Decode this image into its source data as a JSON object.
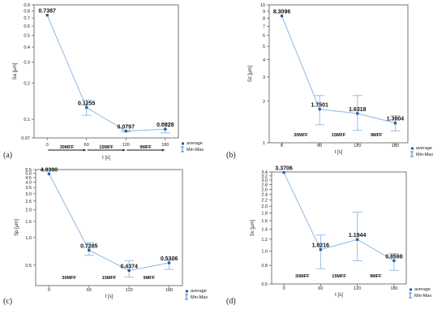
{
  "chart_data": [
    {
      "panel_label": "(a)",
      "type": "line",
      "ylabel": "Sa [µm]",
      "xlabel": "t [s]",
      "scale": "log",
      "ylim": [
        0.07,
        0.9
      ],
      "yticks": [
        "0.07",
        "0.1",
        "0.2",
        "0.3",
        "0.4",
        "0.5",
        "0.6",
        "0.7",
        "0.8",
        "0.9"
      ],
      "ytick_values": [
        0.07,
        0.1,
        0.2,
        0.3,
        0.4,
        0.5,
        0.6,
        0.7,
        0.8,
        0.9
      ],
      "x": [
        0,
        60,
        120,
        180
      ],
      "y": [
        0.7387,
        0.1255,
        0.0797,
        0.0828
      ],
      "labels": [
        "0.7387",
        "0.1255",
        "0.0797",
        "0.0828"
      ],
      "min": [
        0.7387,
        0.108,
        0.0785,
        0.077
      ],
      "max": [
        0.7387,
        0.145,
        0.081,
        0.092
      ],
      "stages": [
        "30MFF",
        "15MFF",
        "9MFF"
      ],
      "legend": [
        "average",
        "Min-Max"
      ],
      "color": "#1f5ea8",
      "line_color": "#8db8e3"
    },
    {
      "panel_label": "(b)",
      "type": "line",
      "ylabel": "Sz [µm]",
      "xlabel": "t [s]",
      "scale": "log",
      "ylim": [
        1,
        10
      ],
      "yticks": [
        "1",
        "2",
        "3",
        "4",
        "5",
        "6",
        "7",
        "8",
        "9",
        "10"
      ],
      "ytick_values": [
        1,
        2,
        3,
        4,
        5,
        6,
        7,
        8,
        9,
        10
      ],
      "x": [
        0,
        60,
        120,
        180
      ],
      "y": [
        8.3096,
        1.7501,
        1.6318,
        1.3904
      ],
      "labels": [
        "8.3096",
        "1.7501",
        "1.6318",
        "1.3904"
      ],
      "min": [
        8.3096,
        1.35,
        1.23,
        1.22
      ],
      "max": [
        8.3096,
        2.2,
        2.2,
        1.57
      ],
      "stages": [
        "30MFF",
        "15MFF",
        "9MFF"
      ],
      "legend": [
        "average",
        "Min-Max"
      ],
      "color": "#1f5ea8",
      "line_color": "#8db8e3"
    },
    {
      "panel_label": "(c)",
      "type": "line",
      "ylabel": "Sp [µm]",
      "xlabel": "t [s]",
      "scale": "log",
      "ylim": [
        0.3,
        5.5
      ],
      "yticks": [
        "0.5",
        "1.0",
        "1.5",
        "2.0",
        "2.5",
        "3.0",
        "3.5",
        "4.0",
        "4.5",
        "5.0",
        "5.5"
      ],
      "ytick_values": [
        0.5,
        1.0,
        1.5,
        2.0,
        2.5,
        3.0,
        3.5,
        4.0,
        4.5,
        5.0,
        5.5
      ],
      "x": [
        0,
        60,
        120,
        180
      ],
      "y": [
        4.939,
        0.7285,
        0.4374,
        0.5306
      ],
      "labels": [
        "4.9390",
        "0.7285",
        "0.4374",
        "0.5306"
      ],
      "min": [
        4.939,
        0.64,
        0.37,
        0.45
      ],
      "max": [
        4.939,
        0.88,
        0.56,
        0.57
      ],
      "stages": [
        "30MFF",
        "15MFF",
        "9MFF"
      ],
      "legend": [
        "average",
        "Min-Max"
      ],
      "color": "#1f5ea8",
      "line_color": "#8db8e3"
    },
    {
      "panel_label": "(d)",
      "type": "line",
      "ylabel": "Sv [µm]",
      "xlabel": "t [s]",
      "scale": "log",
      "ylim": [
        0.6,
        3.4
      ],
      "yticks": [
        "0.6",
        "0.8",
        "1.0",
        "1.2",
        "1.4",
        "1.6",
        "1.8",
        "2.0",
        "2.2",
        "2.4",
        "2.6",
        "2.8",
        "3.0",
        "3.2",
        "3.4"
      ],
      "ytick_values": [
        0.6,
        0.8,
        1.0,
        1.2,
        1.4,
        1.6,
        1.8,
        2.0,
        2.2,
        2.4,
        2.6,
        2.8,
        3.0,
        3.2,
        3.4
      ],
      "x": [
        0,
        60,
        120,
        180
      ],
      "y": [
        3.3706,
        1.0216,
        1.1944,
        0.8598
      ],
      "labels": [
        "3.3706",
        "1.0216",
        "1.1944",
        "0.8598"
      ],
      "min": [
        3.3706,
        0.76,
        0.86,
        0.74
      ],
      "max": [
        3.3706,
        1.28,
        1.82,
        0.96
      ],
      "stages": [
        "30MFF",
        "15MFF",
        "9MFF"
      ],
      "legend": [
        "average",
        "Min-Max"
      ],
      "color": "#1f5ea8",
      "line_color": "#8db8e3"
    }
  ]
}
